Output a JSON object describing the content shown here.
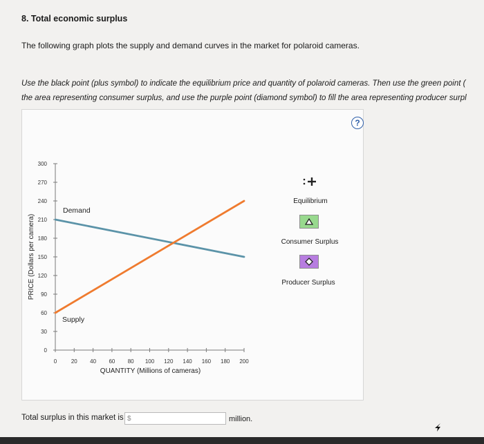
{
  "question": {
    "title": "8. Total economic surplus",
    "intro": "The following graph plots the supply and demand curves in the market for polaroid cameras.",
    "instruction_line1": "Use the black point (plus symbol) to indicate the equilibrium price and quantity of polaroid cameras. Then use the green point (",
    "instruction_line2": "the area representing consumer surplus, and use the purple point (diamond symbol) to fill the area representing producer surpl"
  },
  "help_button_label": "?",
  "tools": {
    "equilibrium_label": "Equilibrium",
    "consumer_surplus_label": "Consumer Surplus",
    "producer_surplus_label": "Producer Surplus"
  },
  "answer": {
    "label": "Total surplus in this market is",
    "prefix": "$",
    "value": "",
    "unit": "million."
  },
  "colors": {
    "demand": "#5b93a8",
    "supply": "#ef7b2f",
    "consumer_surplus": "#98d98e",
    "producer_surplus": "#b77de0"
  },
  "chart_data": {
    "type": "line",
    "xlabel": "QUANTITY (Millions of cameras)",
    "ylabel": "PRICE (Dollars per camera)",
    "xlim": [
      0,
      200
    ],
    "ylim": [
      0,
      300
    ],
    "x_ticks": [
      0,
      20,
      40,
      60,
      80,
      100,
      120,
      140,
      160,
      180,
      200
    ],
    "y_ticks": [
      0,
      30,
      60,
      90,
      120,
      150,
      180,
      210,
      240,
      270,
      300
    ],
    "series": [
      {
        "name": "Demand",
        "color": "#5b93a8",
        "x": [
          0,
          200
        ],
        "y": [
          210,
          150
        ]
      },
      {
        "name": "Supply",
        "color": "#ef7b2f",
        "x": [
          0,
          200
        ],
        "y": [
          60,
          240
        ]
      }
    ],
    "grid": false
  }
}
